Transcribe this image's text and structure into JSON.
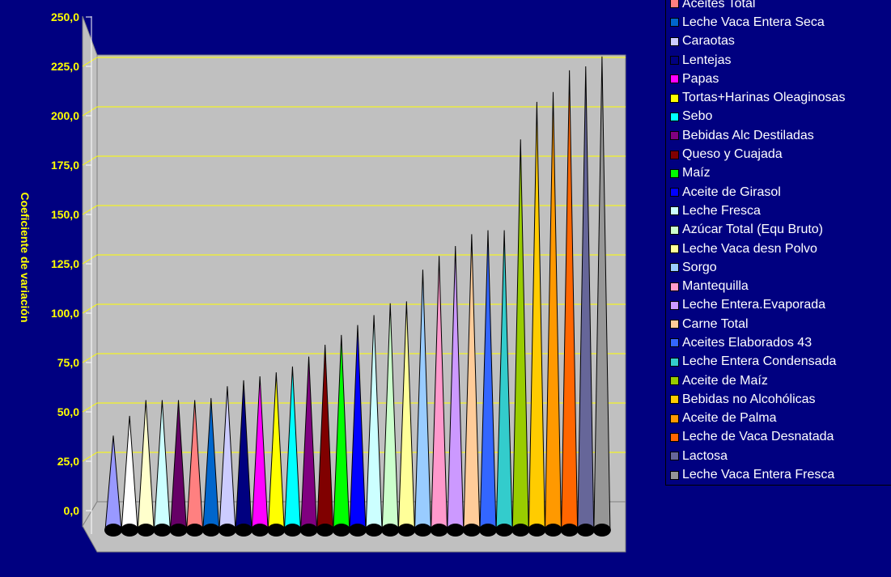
{
  "chart_data": {
    "type": "bar",
    "ylabel": "Coeficiente de variación",
    "ylim": [
      0,
      250
    ],
    "yticks": [
      "0,0",
      "25,0",
      "50,0",
      "75,0",
      "100,0",
      "125,0",
      "150,0",
      "175,0",
      "200,0",
      "225,0",
      "250,0"
    ],
    "grid": true,
    "legend_position": "right",
    "colors": {
      "background": "#000080",
      "plot_wall": "#c0c0c0",
      "gridline": "#ffff00",
      "tick_text": "#ffff00",
      "legend_text": "#ffffff"
    },
    "series": [
      {
        "name": "",
        "value": 38,
        "color": "#9999ff"
      },
      {
        "name": "",
        "value": 48,
        "color": "#ffffff"
      },
      {
        "name": "",
        "value": 56,
        "color": "#ffffcc"
      },
      {
        "name": "",
        "value": 56,
        "color": "#ccffff"
      },
      {
        "name": "",
        "value": 56,
        "color": "#660066"
      },
      {
        "name": "Aceites Total",
        "value": 56,
        "color": "#ff8080"
      },
      {
        "name": "Leche Vaca Entera Seca",
        "value": 57,
        "color": "#0066cc"
      },
      {
        "name": "Caraotas",
        "value": 63,
        "color": "#ccccff"
      },
      {
        "name": "Lentejas",
        "value": 66,
        "color": "#000080"
      },
      {
        "name": "Papas",
        "value": 68,
        "color": "#ff00ff"
      },
      {
        "name": "Tortas+Harinas Oleaginosas",
        "value": 70,
        "color": "#ffff00"
      },
      {
        "name": "Sebo",
        "value": 73,
        "color": "#00ffff"
      },
      {
        "name": "Bebidas Alc Destiladas",
        "value": 78,
        "color": "#800080"
      },
      {
        "name": "Queso y Cuajada",
        "value": 84,
        "color": "#800000"
      },
      {
        "name": "Maíz",
        "value": 89,
        "color": "#00ff00"
      },
      {
        "name": "Aceite de Girasol",
        "value": 94,
        "color": "#0000ff"
      },
      {
        "name": "Leche Fresca",
        "value": 99,
        "color": "#ccffff"
      },
      {
        "name": "Azúcar Total (Equ Bruto)",
        "value": 105,
        "color": "#ccffcc"
      },
      {
        "name": "Leche Vaca desn Polvo",
        "value": 106,
        "color": "#ffff99"
      },
      {
        "name": "Sorgo",
        "value": 122,
        "color": "#99ccff"
      },
      {
        "name": "Mantequilla",
        "value": 129,
        "color": "#ff99cc"
      },
      {
        "name": "Leche Entera.Evaporada",
        "value": 134,
        "color": "#cc99ff"
      },
      {
        "name": "Carne Total",
        "value": 140,
        "color": "#ffcc99"
      },
      {
        "name": "Aceites Elaborados 43",
        "value": 142,
        "color": "#3366ff"
      },
      {
        "name": "Leche Entera  Condensada",
        "value": 142,
        "color": "#33cccc"
      },
      {
        "name": "Aceite de Maíz",
        "value": 188,
        "color": "#99cc00"
      },
      {
        "name": "Bebidas no Alcohólicas",
        "value": 207,
        "color": "#ffcc00"
      },
      {
        "name": "Aceite de Palma",
        "value": 212,
        "color": "#ff9900"
      },
      {
        "name": "Leche de Vaca Desnatada",
        "value": 223,
        "color": "#ff6600"
      },
      {
        "name": "Lactosa",
        "value": 225,
        "color": "#666699"
      },
      {
        "name": "Leche Vaca Entera Fresca",
        "value": 230,
        "color": "#969696"
      }
    ]
  }
}
